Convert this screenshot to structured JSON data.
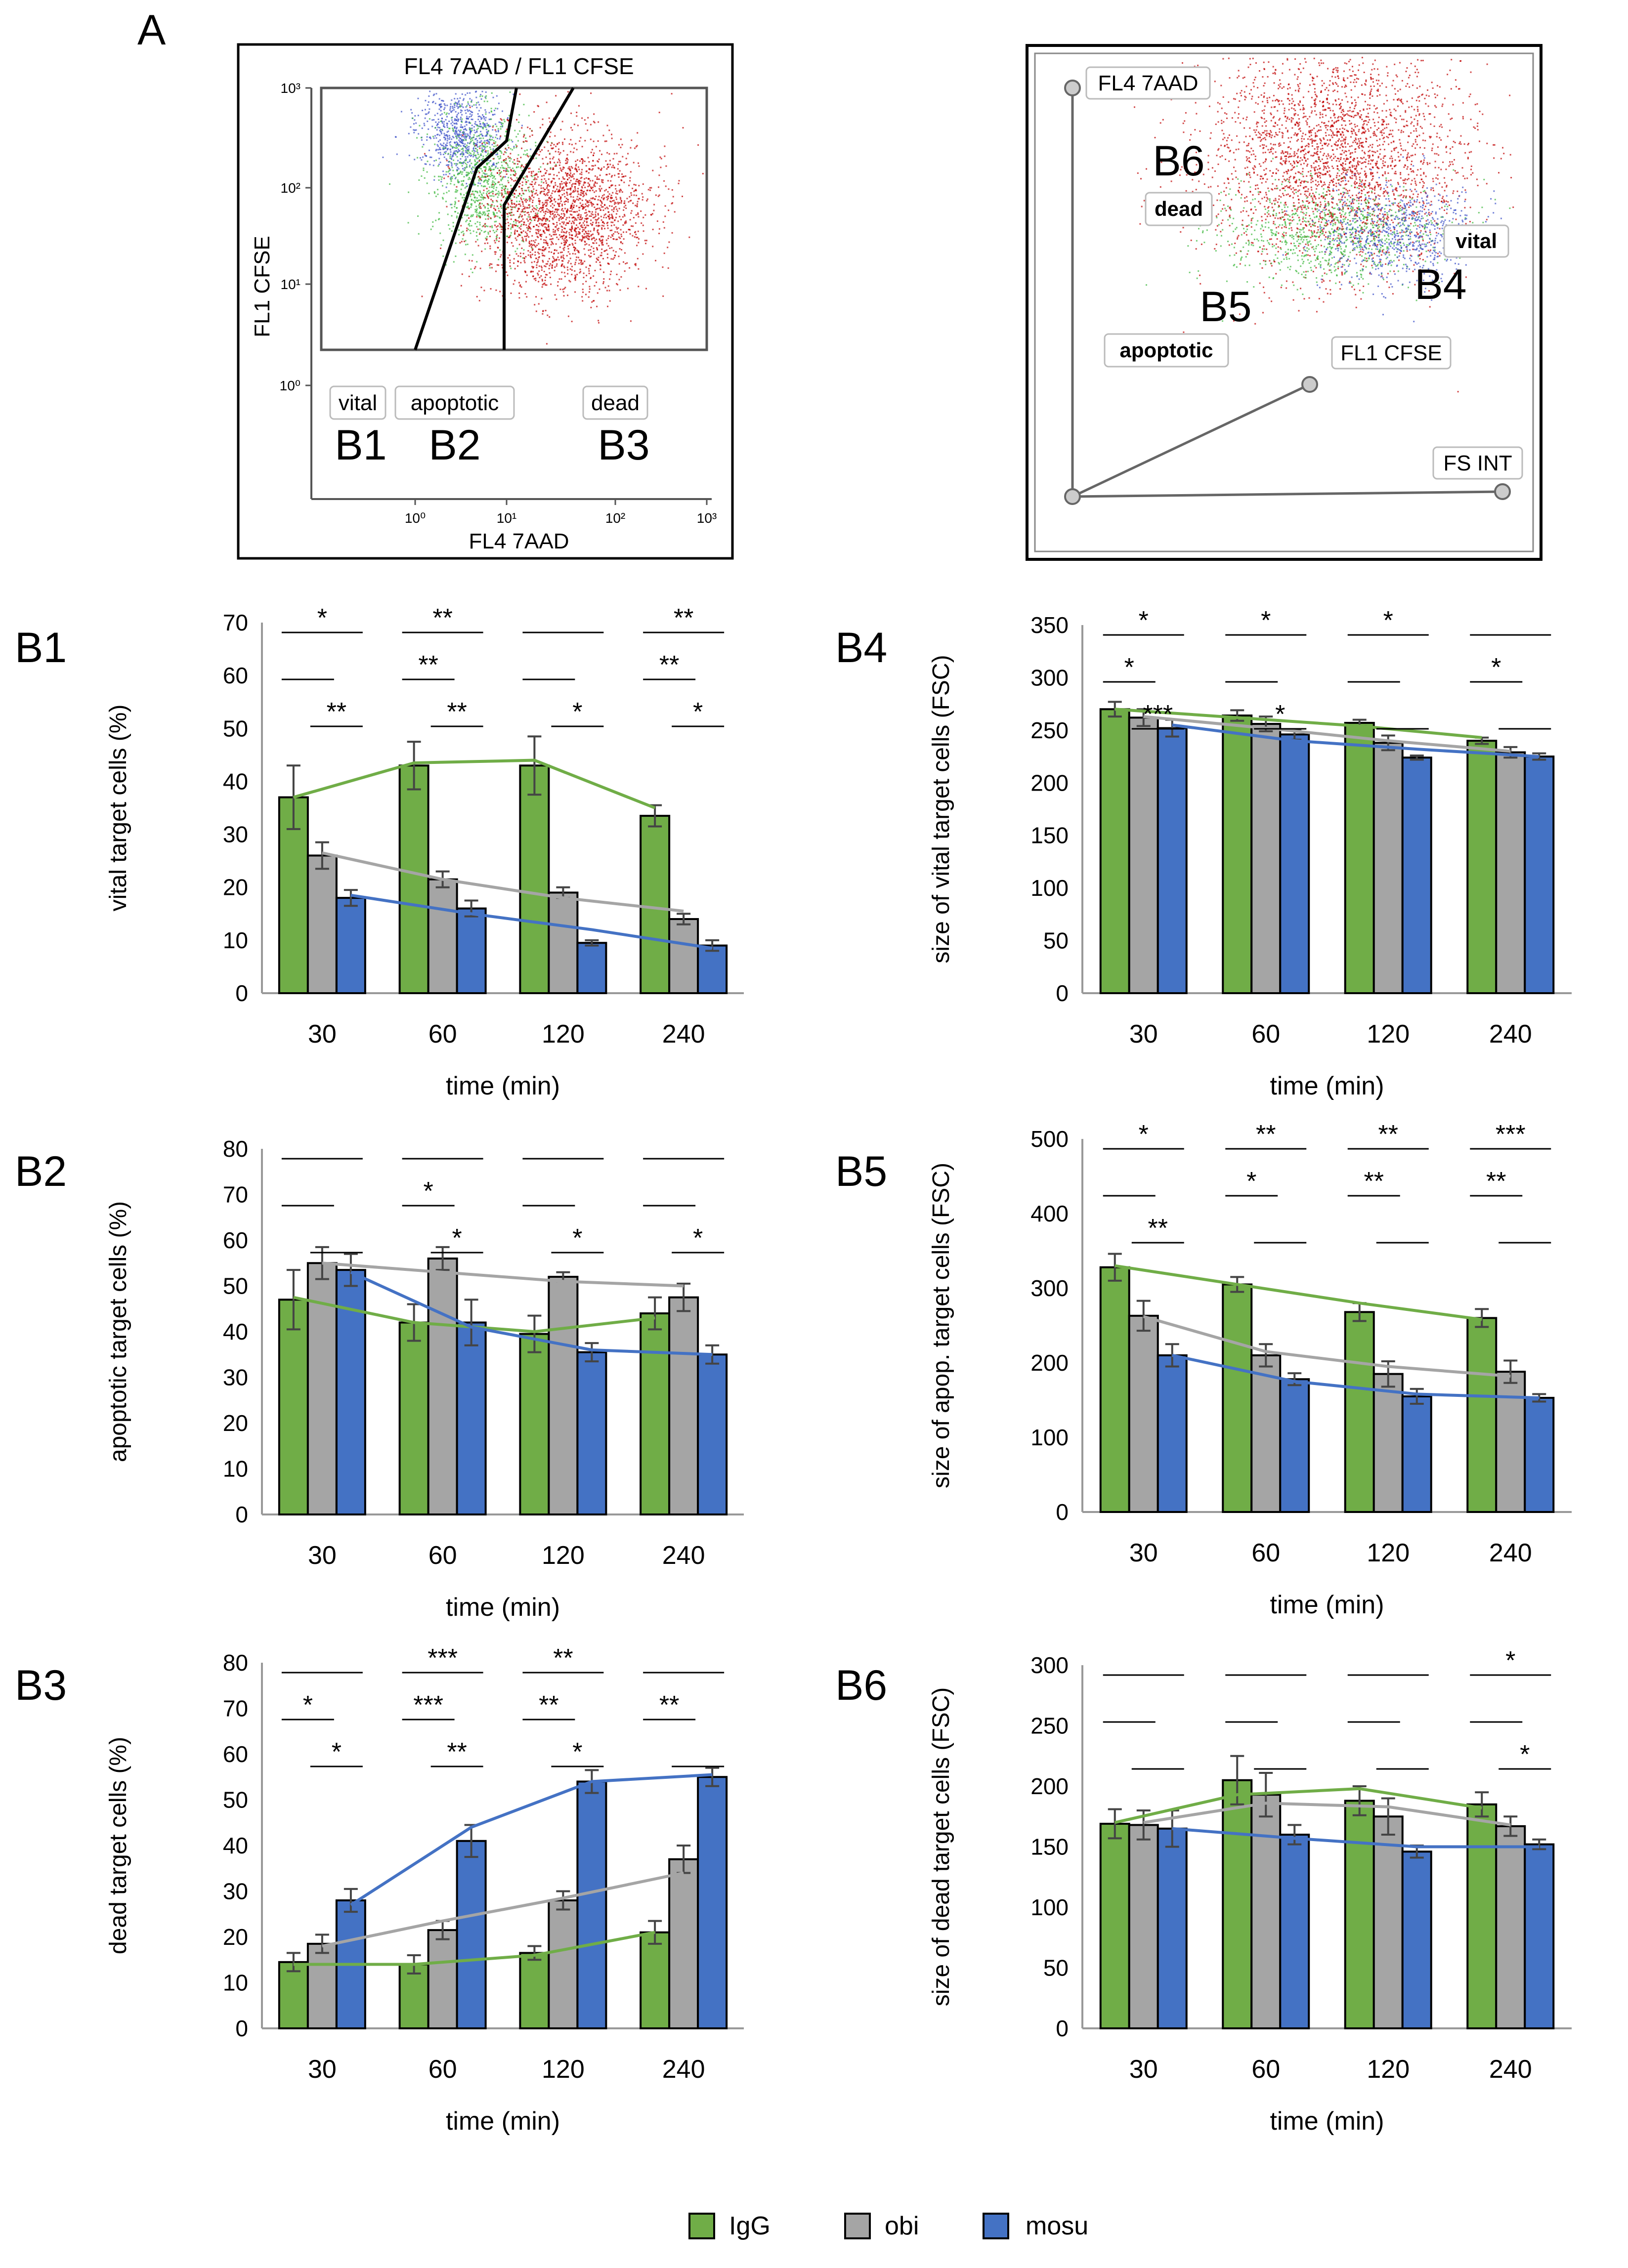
{
  "figure_label": "A",
  "flow_plot": {
    "title": "FL4 7AAD / FL1 CFSE",
    "xlabel": "FL4 7AAD",
    "ylabel": "FL1 CFSE",
    "x_ticks": [
      "10⁰",
      "10¹",
      "10²",
      "10³"
    ],
    "y_ticks": [
      "10⁰",
      "10¹",
      "10²",
      "10³"
    ],
    "gate_labels": [
      "vital",
      "apoptotic",
      "dead"
    ],
    "gate_codes": [
      "B1",
      "B2",
      "B3"
    ]
  },
  "plot3d": {
    "axis_z": "FL4 7AAD",
    "axis_y": "FL1 CFSE",
    "axis_x": "FS INT",
    "region_labels": [
      "dead",
      "apoptotic",
      "vital"
    ],
    "region_codes": [
      "B6",
      "B5",
      "B4"
    ]
  },
  "legend": [
    "IgG",
    "obi",
    "mosu"
  ],
  "colors": {
    "IgG": "#70ad47",
    "obi": "#a5a5a5",
    "mosu": "#4472c4",
    "gate_red": "#c00000",
    "gate_green": "#3cb83c",
    "gate_blue": "#3a4fc8"
  },
  "chart_data": [
    {
      "panel": "B1",
      "type": "bar",
      "xlabel": "time (min)",
      "ylabel": "vital target cells (%)",
      "categories": [
        "30",
        "60",
        "120",
        "240"
      ],
      "ylim": [
        0,
        70
      ],
      "yticks": [
        0,
        10,
        20,
        30,
        40,
        50,
        60,
        70
      ],
      "series": [
        {
          "name": "IgG",
          "values": [
            37,
            43,
            43,
            33.5
          ],
          "errors": [
            6,
            4.5,
            5.5,
            2
          ]
        },
        {
          "name": "obi",
          "values": [
            26,
            21.5,
            19,
            14
          ],
          "errors": [
            2.5,
            1.5,
            1,
            1
          ]
        },
        {
          "name": "mosu",
          "values": [
            18,
            16,
            9.5,
            9
          ],
          "errors": [
            1.5,
            1.5,
            0.5,
            1
          ]
        }
      ],
      "trends": {
        "IgG": [
          37,
          43.5,
          44,
          35
        ],
        "obi": [
          26.5,
          21.5,
          18,
          15.5
        ],
        "mosu": [
          18.5,
          15,
          12,
          8.5
        ]
      },
      "sig": [
        {
          "g": 0,
          "a": 0,
          "b": 2,
          "level": 0,
          "label": "*"
        },
        {
          "g": 0,
          "a": 0,
          "b": 1,
          "level": 1,
          "label": ""
        },
        {
          "g": 0,
          "a": 1,
          "b": 2,
          "level": 2,
          "label": "**"
        },
        {
          "g": 1,
          "a": 0,
          "b": 2,
          "level": 0,
          "label": "**"
        },
        {
          "g": 1,
          "a": 0,
          "b": 1,
          "level": 1,
          "label": "**"
        },
        {
          "g": 1,
          "a": 1,
          "b": 2,
          "level": 2,
          "label": "**"
        },
        {
          "g": 2,
          "a": 0,
          "b": 2,
          "level": 0,
          "label": ""
        },
        {
          "g": 2,
          "a": 0,
          "b": 1,
          "level": 1,
          "label": ""
        },
        {
          "g": 2,
          "a": 1,
          "b": 2,
          "level": 2,
          "label": "*"
        },
        {
          "g": 3,
          "a": 0,
          "b": 2,
          "level": 0,
          "label": "**"
        },
        {
          "g": 3,
          "a": 0,
          "b": 1,
          "level": 1,
          "label": "**"
        },
        {
          "g": 3,
          "a": 1,
          "b": 2,
          "level": 2,
          "label": "*"
        }
      ]
    },
    {
      "panel": "B4",
      "type": "bar",
      "xlabel": "time (min)",
      "ylabel": "size of vital target cells (FSC)",
      "categories": [
        "30",
        "60",
        "120",
        "240"
      ],
      "ylim": [
        0,
        350
      ],
      "yticks": [
        0,
        50,
        100,
        150,
        200,
        250,
        300,
        350
      ],
      "series": [
        {
          "name": "IgG",
          "values": [
            270,
            264,
            257,
            240
          ],
          "errors": [
            7,
            5,
            3,
            3
          ]
        },
        {
          "name": "obi",
          "values": [
            262,
            256,
            238,
            229
          ],
          "errors": [
            8,
            7,
            7,
            5
          ]
        },
        {
          "name": "mosu",
          "values": [
            252,
            246,
            224,
            225
          ],
          "errors": [
            8,
            5,
            2,
            3
          ]
        }
      ],
      "trends": {
        "IgG": [
          270,
          262,
          254,
          243
        ],
        "obi": [
          263,
          252,
          240,
          230
        ],
        "mosu": [
          255,
          240,
          232,
          225
        ]
      },
      "sig": [
        {
          "g": 0,
          "a": 0,
          "b": 2,
          "level": 0,
          "label": "*"
        },
        {
          "g": 0,
          "a": 0,
          "b": 1,
          "level": 1,
          "label": "*"
        },
        {
          "g": 0,
          "a": 1,
          "b": 2,
          "level": 2,
          "label": "***"
        },
        {
          "g": 1,
          "a": 0,
          "b": 2,
          "level": 0,
          "label": "*"
        },
        {
          "g": 1,
          "a": 0,
          "b": 1,
          "level": 1,
          "label": ""
        },
        {
          "g": 1,
          "a": 1,
          "b": 2,
          "level": 2,
          "label": "*"
        },
        {
          "g": 2,
          "a": 0,
          "b": 2,
          "level": 0,
          "label": "*"
        },
        {
          "g": 2,
          "a": 0,
          "b": 1,
          "level": 1,
          "label": ""
        },
        {
          "g": 2,
          "a": 1,
          "b": 2,
          "level": 2,
          "label": ""
        },
        {
          "g": 3,
          "a": 0,
          "b": 2,
          "level": 0,
          "label": ""
        },
        {
          "g": 3,
          "a": 0,
          "b": 1,
          "level": 1,
          "label": "*"
        },
        {
          "g": 3,
          "a": 1,
          "b": 2,
          "level": 2,
          "label": ""
        }
      ]
    },
    {
      "panel": "B2",
      "type": "bar",
      "xlabel": "time (min)",
      "ylabel": "apoptotic target cells (%)",
      "categories": [
        "30",
        "60",
        "120",
        "240"
      ],
      "ylim": [
        0,
        80
      ],
      "yticks": [
        0,
        10,
        20,
        30,
        40,
        50,
        60,
        70,
        80
      ],
      "series": [
        {
          "name": "IgG",
          "values": [
            47,
            42,
            39.5,
            44
          ],
          "errors": [
            6.5,
            4,
            4,
            3.5
          ]
        },
        {
          "name": "obi",
          "values": [
            55,
            56,
            52,
            47.5
          ],
          "errors": [
            3.5,
            2.5,
            1,
            3
          ]
        },
        {
          "name": "mosu",
          "values": [
            53.5,
            42,
            35.5,
            35
          ],
          "errors": [
            3.5,
            5,
            2,
            2
          ]
        }
      ],
      "trends": {
        "IgG": [
          47.5,
          42,
          40,
          43
        ],
        "obi": [
          55,
          53,
          51,
          50
        ],
        "mosu": [
          53,
          41,
          36,
          35
        ]
      },
      "sig": [
        {
          "g": 0,
          "a": 0,
          "b": 2,
          "level": 0,
          "label": ""
        },
        {
          "g": 0,
          "a": 0,
          "b": 1,
          "level": 1,
          "label": ""
        },
        {
          "g": 0,
          "a": 1,
          "b": 2,
          "level": 2,
          "label": ""
        },
        {
          "g": 1,
          "a": 0,
          "b": 2,
          "level": 0,
          "label": ""
        },
        {
          "g": 1,
          "a": 0,
          "b": 1,
          "level": 1,
          "label": "*"
        },
        {
          "g": 1,
          "a": 1,
          "b": 2,
          "level": 2,
          "label": "*"
        },
        {
          "g": 2,
          "a": 0,
          "b": 2,
          "level": 0,
          "label": ""
        },
        {
          "g": 2,
          "a": 0,
          "b": 1,
          "level": 1,
          "label": ""
        },
        {
          "g": 2,
          "a": 1,
          "b": 2,
          "level": 2,
          "label": "*"
        },
        {
          "g": 3,
          "a": 0,
          "b": 2,
          "level": 0,
          "label": ""
        },
        {
          "g": 3,
          "a": 0,
          "b": 1,
          "level": 1,
          "label": ""
        },
        {
          "g": 3,
          "a": 1,
          "b": 2,
          "level": 2,
          "label": "*"
        }
      ]
    },
    {
      "panel": "B5",
      "type": "bar",
      "xlabel": "time (min)",
      "ylabel": "size of apop. target cells (FSC)",
      "categories": [
        "30",
        "60",
        "120",
        "240"
      ],
      "ylim": [
        0,
        500
      ],
      "yticks": [
        0,
        100,
        200,
        300,
        400,
        500
      ],
      "series": [
        {
          "name": "IgG",
          "values": [
            328,
            305,
            268,
            260
          ],
          "errors": [
            18,
            10,
            12,
            12
          ]
        },
        {
          "name": "obi",
          "values": [
            263,
            210,
            185,
            188
          ],
          "errors": [
            20,
            15,
            17,
            15
          ]
        },
        {
          "name": "mosu",
          "values": [
            210,
            178,
            155,
            153
          ],
          "errors": [
            15,
            8,
            10,
            5
          ]
        }
      ],
      "trends": {
        "IgG": [
          330,
          305,
          280,
          258
        ],
        "obi": [
          262,
          215,
          195,
          182
        ],
        "mosu": [
          210,
          175,
          158,
          153
        ]
      },
      "sig": [
        {
          "g": 0,
          "a": 0,
          "b": 2,
          "level": 0,
          "label": "*"
        },
        {
          "g": 0,
          "a": 0,
          "b": 1,
          "level": 1,
          "label": ""
        },
        {
          "g": 0,
          "a": 1,
          "b": 2,
          "level": 2,
          "label": "**"
        },
        {
          "g": 1,
          "a": 0,
          "b": 2,
          "level": 0,
          "label": "**"
        },
        {
          "g": 1,
          "a": 0,
          "b": 1,
          "level": 1,
          "label": "*"
        },
        {
          "g": 1,
          "a": 1,
          "b": 2,
          "level": 2,
          "label": ""
        },
        {
          "g": 2,
          "a": 0,
          "b": 2,
          "level": 0,
          "label": "**"
        },
        {
          "g": 2,
          "a": 0,
          "b": 1,
          "level": 1,
          "label": "**"
        },
        {
          "g": 2,
          "a": 1,
          "b": 2,
          "level": 2,
          "label": ""
        },
        {
          "g": 3,
          "a": 0,
          "b": 2,
          "level": 0,
          "label": "***"
        },
        {
          "g": 3,
          "a": 0,
          "b": 1,
          "level": 1,
          "label": "**"
        },
        {
          "g": 3,
          "a": 1,
          "b": 2,
          "level": 2,
          "label": ""
        }
      ]
    },
    {
      "panel": "B3",
      "type": "bar",
      "xlabel": "time (min)",
      "ylabel": "dead target cells (%)",
      "categories": [
        "30",
        "60",
        "120",
        "240"
      ],
      "ylim": [
        0,
        80
      ],
      "yticks": [
        0,
        10,
        20,
        30,
        40,
        50,
        60,
        70,
        80
      ],
      "series": [
        {
          "name": "IgG",
          "values": [
            14.5,
            14,
            16.5,
            21
          ],
          "errors": [
            2,
            2,
            1.5,
            2.5
          ]
        },
        {
          "name": "obi",
          "values": [
            18.5,
            21.5,
            28,
            37
          ],
          "errors": [
            2,
            2,
            2,
            3
          ]
        },
        {
          "name": "mosu",
          "values": [
            28,
            41,
            54,
            55
          ],
          "errors": [
            2.5,
            3.5,
            2.5,
            2
          ]
        }
      ],
      "trends": {
        "IgG": [
          14,
          14,
          16,
          21
        ],
        "obi": [
          18,
          23.5,
          28.5,
          34
        ],
        "mosu": [
          27,
          44,
          54,
          55.5
        ]
      },
      "sig": [
        {
          "g": 0,
          "a": 0,
          "b": 2,
          "level": 0,
          "label": ""
        },
        {
          "g": 0,
          "a": 0,
          "b": 1,
          "level": 1,
          "label": "*"
        },
        {
          "g": 0,
          "a": 1,
          "b": 2,
          "level": 2,
          "label": "*"
        },
        {
          "g": 1,
          "a": 0,
          "b": 2,
          "level": 0,
          "label": "***"
        },
        {
          "g": 1,
          "a": 0,
          "b": 1,
          "level": 1,
          "label": "***"
        },
        {
          "g": 1,
          "a": 1,
          "b": 2,
          "level": 2,
          "label": "**"
        },
        {
          "g": 2,
          "a": 0,
          "b": 2,
          "level": 0,
          "label": "**"
        },
        {
          "g": 2,
          "a": 0,
          "b": 1,
          "level": 1,
          "label": "**"
        },
        {
          "g": 2,
          "a": 1,
          "b": 2,
          "level": 2,
          "label": "*"
        },
        {
          "g": 3,
          "a": 0,
          "b": 2,
          "level": 0,
          "label": ""
        },
        {
          "g": 3,
          "a": 0,
          "b": 1,
          "level": 1,
          "label": "**"
        },
        {
          "g": 3,
          "a": 1,
          "b": 2,
          "level": 2,
          "label": ""
        }
      ]
    },
    {
      "panel": "B6",
      "type": "bar",
      "xlabel": "time (min)",
      "ylabel": "size of dead target cells (FSC)",
      "categories": [
        "30",
        "60",
        "120",
        "240"
      ],
      "ylim": [
        0,
        300
      ],
      "yticks": [
        0,
        50,
        100,
        150,
        200,
        250,
        300
      ],
      "series": [
        {
          "name": "IgG",
          "values": [
            169,
            205,
            188,
            185
          ],
          "errors": [
            12,
            20,
            12,
            10
          ]
        },
        {
          "name": "obi",
          "values": [
            168,
            193,
            175,
            167
          ],
          "errors": [
            12,
            18,
            15,
            8
          ]
        },
        {
          "name": "mosu",
          "values": [
            165,
            160,
            146,
            152
          ],
          "errors": [
            15,
            8,
            5,
            4
          ]
        }
      ],
      "trends": {
        "IgG": [
          170,
          193,
          198,
          182
        ],
        "obi": [
          170,
          186,
          183,
          168
        ],
        "mosu": [
          165,
          157,
          150,
          150
        ]
      },
      "sig": [
        {
          "g": 0,
          "a": 0,
          "b": 2,
          "level": 0,
          "label": ""
        },
        {
          "g": 0,
          "a": 0,
          "b": 1,
          "level": 1,
          "label": ""
        },
        {
          "g": 0,
          "a": 1,
          "b": 2,
          "level": 2,
          "label": ""
        },
        {
          "g": 1,
          "a": 0,
          "b": 2,
          "level": 0,
          "label": ""
        },
        {
          "g": 1,
          "a": 0,
          "b": 1,
          "level": 1,
          "label": ""
        },
        {
          "g": 1,
          "a": 1,
          "b": 2,
          "level": 2,
          "label": ""
        },
        {
          "g": 2,
          "a": 0,
          "b": 2,
          "level": 0,
          "label": ""
        },
        {
          "g": 2,
          "a": 0,
          "b": 1,
          "level": 1,
          "label": ""
        },
        {
          "g": 2,
          "a": 1,
          "b": 2,
          "level": 2,
          "label": ""
        },
        {
          "g": 3,
          "a": 0,
          "b": 2,
          "level": 0,
          "label": "*"
        },
        {
          "g": 3,
          "a": 0,
          "b": 1,
          "level": 1,
          "label": ""
        },
        {
          "g": 3,
          "a": 1,
          "b": 2,
          "level": 2,
          "label": "*"
        }
      ]
    }
  ]
}
